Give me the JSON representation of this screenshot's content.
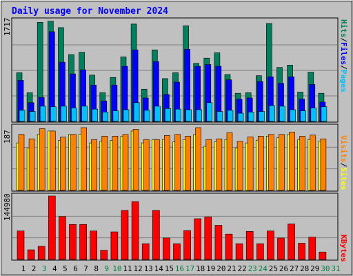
{
  "title": "Daily usage for November 2024",
  "colors": {
    "page_bg": "#C0C0C0",
    "plot_bg": "#C0C0C0",
    "title": "#0000FF",
    "hits": "#00805C",
    "files": "#0000FF",
    "pages": "#00C0FF",
    "visits": "#FF8000",
    "sites": "#FFFF00",
    "kbytes": "#FF0000",
    "day_label": "#000000",
    "weekend_label": "#008040",
    "gridline": "#808080"
  },
  "panels": {
    "top": {
      "ymax_label": "1717",
      "legend": {
        "pages": "Pages",
        "files": "Files",
        "hits": "Hits",
        "sep": "/"
      }
    },
    "middle": {
      "ymax_label": "187",
      "legend": {
        "sites": "Sites",
        "visits": "Visits",
        "sep": "/"
      }
    },
    "bottom": {
      "ymax_label": "144980",
      "legend": {
        "kbytes": "KBytes"
      }
    }
  },
  "chart_data": [
    {
      "type": "bar",
      "title": "Daily usage for November 2024",
      "categories": [
        "1",
        "2",
        "3",
        "4",
        "5",
        "6",
        "7",
        "8",
        "9",
        "10",
        "11",
        "12",
        "13",
        "14",
        "15",
        "16",
        "17",
        "18",
        "19",
        "20",
        "21",
        "22",
        "23",
        "24",
        "25",
        "26",
        "27",
        "28",
        "29",
        "30",
        "31"
      ],
      "weekend_days": [
        3,
        9,
        10,
        16,
        17,
        23,
        24,
        30,
        31
      ],
      "ylim": [
        0,
        1717
      ],
      "series": [
        {
          "name": "Hits",
          "values": [
            830,
            490,
            1690,
            1710,
            1600,
            1140,
            1180,
            790,
            490,
            750,
            1100,
            1660,
            550,
            1220,
            730,
            830,
            1630,
            990,
            1080,
            1170,
            800,
            480,
            490,
            780,
            1670,
            920,
            960,
            500,
            840,
            480,
            0
          ]
        },
        {
          "name": "Files",
          "values": [
            700,
            320,
            410,
            1530,
            1010,
            810,
            880,
            620,
            350,
            620,
            940,
            1220,
            400,
            1020,
            460,
            670,
            1230,
            940,
            970,
            940,
            710,
            380,
            400,
            680,
            760,
            650,
            760,
            380,
            630,
            330,
            0
          ]
        },
        {
          "name": "Pages",
          "values": [
            190,
            170,
            260,
            250,
            260,
            230,
            260,
            210,
            160,
            180,
            200,
            320,
            190,
            260,
            220,
            210,
            200,
            200,
            320,
            170,
            190,
            140,
            160,
            170,
            270,
            260,
            200,
            180,
            230,
            250,
            0
          ]
        }
      ]
    },
    {
      "type": "bar",
      "ylim": [
        0,
        187
      ],
      "categories": [
        "1",
        "2",
        "3",
        "4",
        "5",
        "6",
        "7",
        "8",
        "9",
        "10",
        "11",
        "12",
        "13",
        "14",
        "15",
        "16",
        "17",
        "18",
        "19",
        "20",
        "21",
        "22",
        "23",
        "24",
        "25",
        "26",
        "27",
        "28",
        "29",
        "30",
        "31"
      ],
      "series": [
        {
          "name": "Visits",
          "values": [
            165,
            152,
            182,
            175,
            157,
            165,
            185,
            150,
            160,
            160,
            165,
            180,
            150,
            150,
            162,
            165,
            160,
            185,
            150,
            152,
            170,
            145,
            158,
            160,
            165,
            165,
            172,
            160,
            163,
            152,
            0
          ]
        },
        {
          "name": "Sites",
          "values": [
            140,
            125,
            165,
            175,
            147,
            165,
            166,
            140,
            145,
            147,
            160,
            175,
            140,
            150,
            150,
            143,
            150,
            165,
            130,
            143,
            150,
            125,
            140,
            148,
            160,
            155,
            165,
            150,
            150,
            145,
            0
          ]
        }
      ]
    },
    {
      "type": "bar",
      "ylim": [
        0,
        144980
      ],
      "categories": [
        "1",
        "2",
        "3",
        "4",
        "5",
        "6",
        "7",
        "8",
        "9",
        "10",
        "11",
        "12",
        "13",
        "14",
        "15",
        "16",
        "17",
        "18",
        "19",
        "20",
        "21",
        "22",
        "23",
        "24",
        "25",
        "26",
        "27",
        "28",
        "29",
        "30",
        "31"
      ],
      "series": [
        {
          "name": "KBytes",
          "values": [
            65000,
            22000,
            30000,
            144980,
            98000,
            80000,
            80000,
            65000,
            21000,
            63000,
            112000,
            132000,
            36000,
            112000,
            49000,
            36000,
            66000,
            93000,
            97000,
            78000,
            58000,
            36000,
            64000,
            36000,
            65000,
            49000,
            81000,
            37000,
            51000,
            17000,
            0
          ]
        }
      ]
    }
  ]
}
